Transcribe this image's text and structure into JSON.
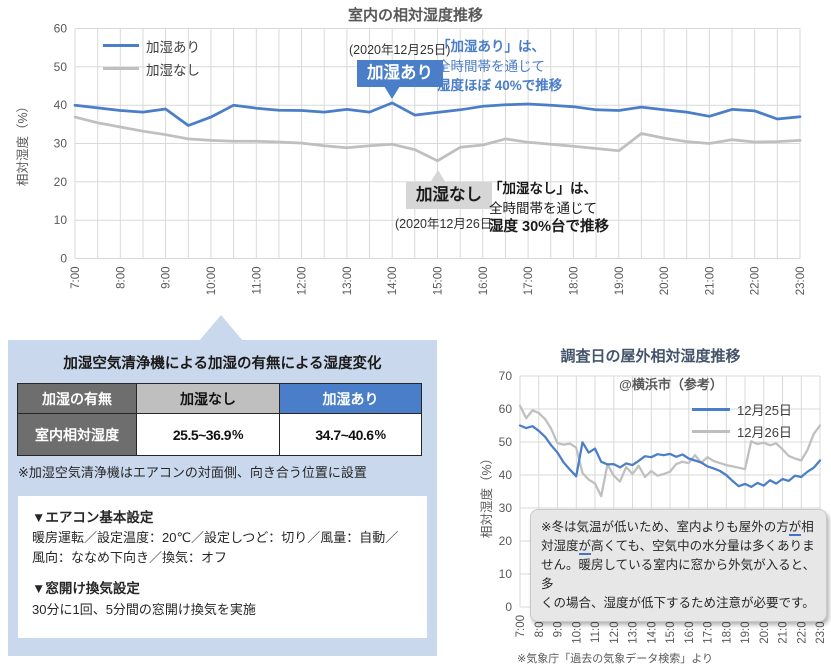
{
  "colors": {
    "blue": "#4A7EC8",
    "gray": "#BFBFBF",
    "grid": "#D9D9D9",
    "axis_text": "#595959",
    "panel_bg": "#CAD8ED",
    "dark_cell": "#6E6E6E",
    "note_bg": "#E7E7E7"
  },
  "main_chart": {
    "title": "室内の相対湿度推移",
    "ylabel": "相対湿度（%）",
    "annotation_with": {
      "date": "(2020年12月25日)",
      "box_label": "加湿あり",
      "line1": "「加湿あり」は、",
      "line2": "全時間帯を通じて",
      "line3": "湿度ほぼ 40%で推移"
    },
    "annotation_without": {
      "box_label": "加湿なし",
      "date": "(2020年12月26日)",
      "line1": "「加湿なし」は、",
      "line2": "全時間帯を通じて",
      "line3": "湿度 30%台で推移"
    }
  },
  "panel": {
    "title": "加湿空気清浄機による加湿の有無による湿度変化",
    "table": {
      "row_header_1": "加湿の有無",
      "row_header_2": "室内相対湿度",
      "col_without": "加湿なし",
      "col_with": "加湿あり",
      "value_without": "25.5~36.9",
      "value_with": "34.7~40.6",
      "unit": "%"
    },
    "note": "※加湿空気清浄機はエアコンの対面側、向き合う位置に設置",
    "aircon_heading": "▼エアコン基本設定",
    "aircon_line1": "暖房運転／設定温度：20℃／設定しつど：切り／風量：自動／",
    "aircon_line2": "風向：ななめ下向き／換気：オフ",
    "window_heading": "▼窓開け換気設定",
    "window_line": "30分に1回、5分間の窓開け換気を実施"
  },
  "outdoor_chart": {
    "title": "調査日の屋外相対湿度推移",
    "subtitle": "@横浜市（参考）",
    "ylabel": "相対湿度（%）",
    "note_segments": [
      [
        {
          "t": "※冬は気温が低いため、室内よりも屋外の方"
        },
        {
          "t": "が",
          "u": true
        },
        {
          "t": "相"
        }
      ],
      [
        {
          "t": "対湿度"
        },
        {
          "t": "が",
          "u": true
        },
        {
          "t": "高くても、空気中の水分量は多くありま"
        }
      ],
      [
        {
          "t": "せん。暖房している室内に窓から外気が入ると、多"
        }
      ],
      [
        {
          "t": "くの場合、湿度が低下するため注意が必要です。"
        }
      ]
    ],
    "source": "※気象庁「過去の気象データ検索」より"
  },
  "chart_data": [
    {
      "type": "line",
      "title": "室内の相対湿度推移",
      "ylabel": "相対湿度（%）",
      "ylim": [
        0,
        60
      ],
      "ytick_step": 10,
      "x_start": 7,
      "x_end": 23,
      "x_step": 0.5,
      "grid": true,
      "legend_position": "top-left-inside",
      "xtick_labels": [
        "7:00",
        "8:00",
        "9:00",
        "10:00",
        "11:00",
        "12:00",
        "13:00",
        "14:00",
        "15:00",
        "16:00",
        "17:00",
        "18:00",
        "19:00",
        "20:00",
        "21:00",
        "22:00",
        "23:00"
      ],
      "series": [
        {
          "name": "加湿あり",
          "color": "#4A7EC8",
          "values": [
            40.0,
            39.3,
            38.6,
            38.2,
            39.0,
            34.7,
            36.9,
            40.0,
            39.2,
            38.7,
            38.6,
            38.2,
            38.9,
            38.2,
            40.6,
            37.4,
            38.1,
            38.8,
            39.7,
            40.1,
            40.3,
            40.0,
            39.6,
            38.8,
            38.6,
            39.5,
            38.8,
            38.2,
            37.1,
            38.9,
            38.5,
            36.4,
            37.0
          ]
        },
        {
          "name": "加湿なし",
          "color": "#BFBFBF",
          "values": [
            36.9,
            35.4,
            34.3,
            33.2,
            32.3,
            31.2,
            30.8,
            30.6,
            30.6,
            30.4,
            30.1,
            29.4,
            28.9,
            29.4,
            29.8,
            28.4,
            25.5,
            29.0,
            29.6,
            31.2,
            30.3,
            29.8,
            29.3,
            28.7,
            28.1,
            32.6,
            31.4,
            30.5,
            30.0,
            31.0,
            30.4,
            30.5,
            30.8
          ]
        }
      ]
    },
    {
      "type": "line",
      "title": "調査日の屋外相対湿度推移",
      "subtitle": "@横浜市（参考）",
      "ylabel": "相対湿度（%）",
      "ylim": [
        0,
        70
      ],
      "ytick_step": 10,
      "x_start": 7,
      "x_end": 23,
      "x_step": 0.3333,
      "grid": true,
      "legend_position": "top-right-inside",
      "xtick_labels": [
        "7:00",
        "8:00",
        "9:00",
        "10:00",
        "11:00",
        "12:00",
        "13:00",
        "14:00",
        "15:00",
        "16:00",
        "17:00",
        "18:00",
        "19:00",
        "20:00",
        "21:00",
        "22:00",
        "23:00"
      ],
      "series": [
        {
          "name": "12月25日",
          "color": "#4A7EC8",
          "values": [
            55.0,
            54.2,
            54.8,
            53.4,
            51.6,
            49.0,
            46.8,
            43.8,
            41.6,
            39.6,
            49.9,
            46.8,
            48.0,
            44.0,
            43.2,
            43.3,
            42.3,
            43.5,
            43.0,
            44.3,
            45.7,
            45.4,
            46.3,
            46.0,
            46.4,
            45.5,
            46.2,
            45.0,
            44.4,
            43.8,
            42.6,
            42.0,
            41.2,
            40.0,
            38.2,
            36.6,
            37.3,
            36.4,
            37.6,
            36.8,
            38.4,
            37.4,
            38.8,
            38.2,
            39.8,
            39.4,
            41.0,
            42.2,
            44.4
          ]
        },
        {
          "name": "12月26日",
          "color": "#BFBFBF",
          "values": [
            61.0,
            57.2,
            59.6,
            58.8,
            57.0,
            54.0,
            49.6,
            49.2,
            49.5,
            48.3,
            40.6,
            38.6,
            37.4,
            33.6,
            43.3,
            39.8,
            38.0,
            42.4,
            40.3,
            42.8,
            39.4,
            41.2,
            39.8,
            40.3,
            41.0,
            43.3,
            44.0,
            43.6,
            46.0,
            43.7,
            45.4,
            44.2,
            43.6,
            43.0,
            42.6,
            42.2,
            41.8,
            50.2,
            49.4,
            49.8,
            49.0,
            49.6,
            47.8,
            45.8,
            45.0,
            44.4,
            47.6,
            52.4,
            55.0
          ]
        }
      ]
    }
  ]
}
